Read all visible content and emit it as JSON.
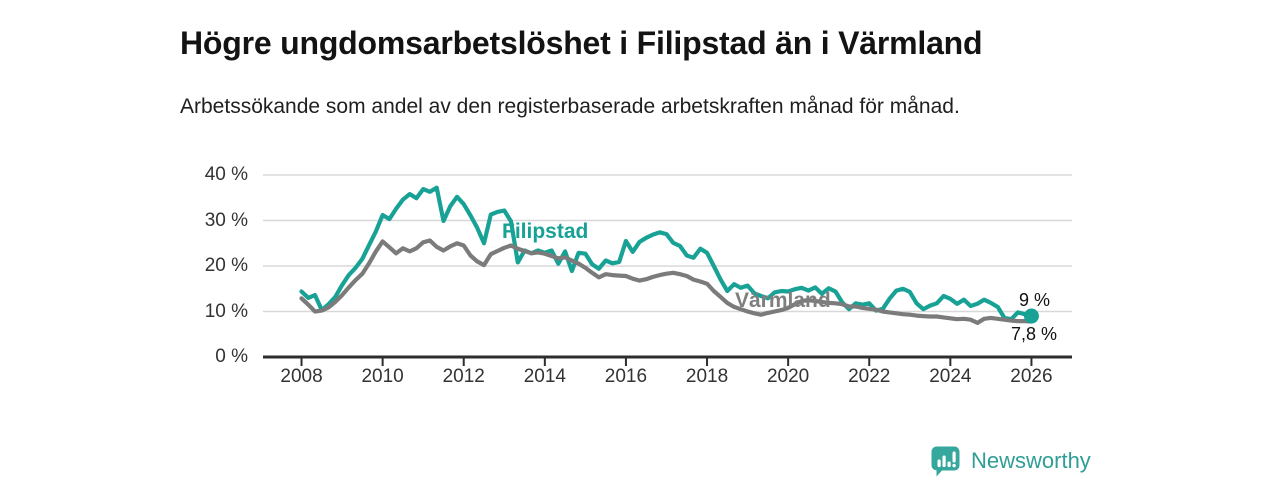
{
  "header": {
    "title": "Högre ungdomsarbetslöshet i Filipstad än i Värmland",
    "subtitle": "Arbetssökande som andel av den registerbaserade arbetskraften månad för månad."
  },
  "footer": {
    "logo_text": "Newsworthy",
    "logo_color": "#2f9e96"
  },
  "chart_data": {
    "type": "line",
    "title": "Högre ungdomsarbetslöshet i Filipstad än i Värmland",
    "subtitle": "Arbetssökande som andel av den registerbaserade arbetskraften månad för månad.",
    "unit": "%",
    "grid": "horizontal only",
    "legend_position": "inline labels on lines",
    "xlim": [
      2007.05,
      2027.0
    ],
    "ylim": [
      0,
      40
    ],
    "x_start": 2008.0,
    "x_step": 0.1666667,
    "x_ticks": [
      2008,
      2010,
      2012,
      2014,
      2016,
      2018,
      2020,
      2022,
      2024,
      2026
    ],
    "x_tick_labels": [
      "2008",
      "2010",
      "2012",
      "2014",
      "2016",
      "2018",
      "2020",
      "2022",
      "2024",
      "2026"
    ],
    "y_ticks": [
      0,
      10,
      20,
      30,
      40
    ],
    "y_tick_labels": [
      "0 %",
      "10 %",
      "20 %",
      "30 %",
      "40 %"
    ],
    "grid_color": "#d8d8d8",
    "axis_color": "#2e2e2e",
    "series": [
      {
        "name": "Filipstad",
        "color": "#18a296",
        "end_label": "9 %",
        "end_value": 9.0,
        "end_dot": true,
        "values": [
          14.4,
          13.0,
          13.6,
          10.3,
          11.6,
          13.2,
          15.8,
          18.0,
          19.6,
          21.6,
          24.6,
          27.6,
          31.2,
          30.3,
          32.6,
          34.6,
          35.8,
          34.9,
          36.9,
          36.3,
          37.2,
          29.9,
          33.1,
          35.2,
          33.6,
          31.1,
          28.4,
          25.0,
          31.3,
          31.9,
          32.2,
          29.8,
          20.8,
          23.4,
          22.8,
          23.4,
          22.9,
          23.4,
          20.5,
          23.2,
          18.9,
          22.9,
          22.7,
          20.4,
          19.4,
          21.2,
          20.6,
          20.9,
          25.5,
          23.1,
          25.3,
          26.2,
          26.9,
          27.4,
          27.0,
          25.1,
          24.4,
          22.3,
          21.8,
          23.8,
          22.9,
          20.0,
          17.0,
          14.5,
          16.0,
          15.2,
          15.7,
          14.0,
          13.4,
          12.9,
          14.2,
          14.5,
          14.4,
          14.9,
          15.2,
          14.6,
          15.3,
          13.9,
          15.1,
          14.4,
          12.0,
          10.5,
          11.8,
          11.5,
          11.8,
          10.2,
          10.6,
          12.8,
          14.6,
          15.0,
          14.3,
          11.8,
          10.5,
          11.3,
          11.8,
          13.4,
          12.8,
          11.7,
          12.6,
          11.2,
          11.7,
          12.6,
          11.9,
          11.0,
          8.6,
          8.3,
          9.8,
          9.4,
          9.0
        ]
      },
      {
        "name": "Värmland",
        "color": "#7b7b7b",
        "end_label": "7,8 %",
        "end_value": 7.8,
        "end_dot": false,
        "values": [
          12.9,
          11.5,
          10.0,
          10.2,
          10.9,
          12.1,
          13.6,
          15.3,
          16.9,
          18.3,
          20.6,
          23.2,
          25.4,
          24.1,
          22.8,
          23.9,
          23.2,
          23.9,
          25.2,
          25.6,
          24.2,
          23.4,
          24.3,
          25.0,
          24.5,
          22.3,
          21.0,
          20.2,
          22.6,
          23.3,
          24.0,
          24.5,
          23.8,
          23.3,
          22.8,
          23.0,
          22.7,
          22.2,
          21.7,
          21.9,
          21.2,
          20.5,
          19.6,
          18.5,
          17.5,
          18.2,
          18.0,
          17.9,
          17.8,
          17.2,
          16.8,
          17.1,
          17.6,
          18.0,
          18.3,
          18.5,
          18.2,
          17.8,
          17.0,
          16.6,
          16.1,
          14.5,
          13.2,
          11.9,
          11.0,
          10.5,
          10.0,
          9.6,
          9.3,
          9.7,
          10.0,
          10.3,
          10.8,
          11.6,
          12.3,
          12.5,
          12.3,
          12.1,
          11.9,
          11.8,
          11.6,
          11.1,
          11.1,
          10.8,
          10.6,
          10.4,
          10.0,
          9.8,
          9.6,
          9.4,
          9.3,
          9.1,
          9.0,
          8.9,
          8.9,
          8.7,
          8.5,
          8.3,
          8.4,
          8.2,
          7.5,
          8.4,
          8.6,
          8.4,
          8.2,
          8.0,
          7.9,
          7.9,
          7.8
        ]
      }
    ]
  }
}
